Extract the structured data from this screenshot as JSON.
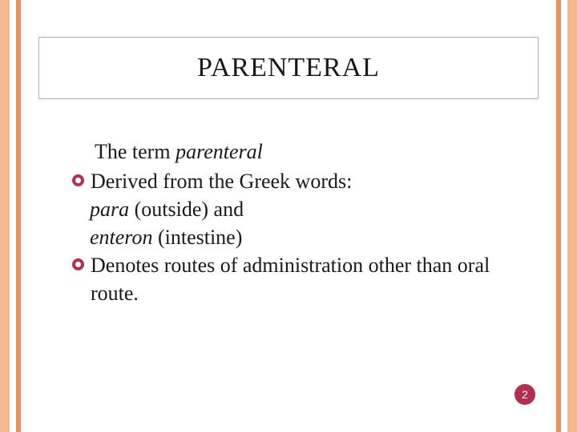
{
  "theme": {
    "stripe_outer_color": "#f5b890",
    "stripe_inner_color": "#f08f5a",
    "accent_color": "#b2304f",
    "title_border_color": "#b0b0b0",
    "text_color": "#1a1a1a",
    "background": "#ffffff"
  },
  "title": "PARENTERAL",
  "intro": {
    "prefix": "The term ",
    "term": "parenteral"
  },
  "bullets": [
    {
      "lead": "Derived from the Greek words:",
      "subs": [
        {
          "word": "para",
          "gloss": "  (outside) and"
        },
        {
          "word": "enteron",
          "gloss": " (intestine)"
        }
      ]
    },
    {
      "lead": "Denotes routes of administration other than oral route.",
      "subs": []
    }
  ],
  "page_number": "2"
}
